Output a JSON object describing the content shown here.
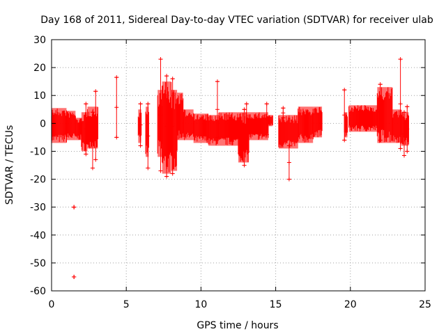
{
  "chart_data": {
    "type": "scatter",
    "title": "Day 168 of 2011, Sidereal Day-to-day VTEC variation (SDTVAR) for receiver ulab",
    "xlabel": "GPS time / hours",
    "ylabel": "SDTVAR / TECUs",
    "xlim": [
      0,
      25
    ],
    "ylim": [
      -60,
      30
    ],
    "xticks": [
      0,
      5,
      10,
      15,
      20,
      25
    ],
    "yticks": [
      -60,
      -50,
      -40,
      -30,
      -20,
      -10,
      0,
      10,
      20,
      30
    ],
    "grid": true,
    "series_color": "#ff0000",
    "segments": [
      {
        "x0": 0.0,
        "x1": 1.0,
        "lo": -7,
        "hi": 5.5
      },
      {
        "x0": 1.0,
        "x1": 1.6,
        "lo": -6,
        "hi": 4.5
      },
      {
        "x0": 1.6,
        "x1": 2.0,
        "lo": -6,
        "hi": 2
      },
      {
        "x0": 2.0,
        "x1": 2.4,
        "lo": -10,
        "hi": 4
      },
      {
        "x0": 2.4,
        "x1": 3.1,
        "lo": -9,
        "hi": 6
      },
      {
        "x0": 5.8,
        "x1": 6.0,
        "lo": -7,
        "hi": 5
      },
      {
        "x0": 6.3,
        "x1": 6.5,
        "lo": -12,
        "hi": 6
      },
      {
        "x0": 7.1,
        "x1": 7.4,
        "lo": -12,
        "hi": 12
      },
      {
        "x0": 7.4,
        "x1": 8.0,
        "lo": -18,
        "hi": 15
      },
      {
        "x0": 8.0,
        "x1": 8.4,
        "lo": -17,
        "hi": 12
      },
      {
        "x0": 8.4,
        "x1": 8.8,
        "lo": -6,
        "hi": 11
      },
      {
        "x0": 8.8,
        "x1": 9.5,
        "lo": -6,
        "hi": 5
      },
      {
        "x0": 9.5,
        "x1": 10.5,
        "lo": -7,
        "hi": 3.5
      },
      {
        "x0": 10.5,
        "x1": 11.2,
        "lo": -8,
        "hi": 3
      },
      {
        "x0": 11.2,
        "x1": 12.5,
        "lo": -8,
        "hi": 4
      },
      {
        "x0": 12.5,
        "x1": 13.2,
        "lo": -14,
        "hi": 4
      },
      {
        "x0": 13.2,
        "x1": 14.5,
        "lo": -6,
        "hi": 4
      },
      {
        "x0": 14.5,
        "x1": 14.8,
        "lo": -1,
        "hi": 3
      },
      {
        "x0": 15.2,
        "x1": 16.5,
        "lo": -9,
        "hi": 3
      },
      {
        "x0": 16.5,
        "x1": 17.5,
        "lo": -7,
        "hi": 6
      },
      {
        "x0": 17.5,
        "x1": 18.1,
        "lo": -5,
        "hi": 6
      },
      {
        "x0": 19.6,
        "x1": 19.8,
        "lo": -5,
        "hi": 4
      },
      {
        "x0": 19.9,
        "x1": 21.8,
        "lo": -3,
        "hi": 6.5
      },
      {
        "x0": 21.8,
        "x1": 22.8,
        "lo": -7,
        "hi": 13
      },
      {
        "x0": 22.8,
        "x1": 23.4,
        "lo": -7,
        "hi": 5
      },
      {
        "x0": 23.4,
        "x1": 23.9,
        "lo": -8,
        "hi": 4
      }
    ],
    "spikes": [
      {
        "x": 1.5,
        "lo": -55,
        "hi": -55
      },
      {
        "x": 1.5,
        "lo": -30,
        "hi": -30
      },
      {
        "x": 2.3,
        "lo": -11,
        "hi": 7
      },
      {
        "x": 2.75,
        "lo": -16,
        "hi": 4
      },
      {
        "x": 2.95,
        "lo": -13,
        "hi": 11.5
      },
      {
        "x": 4.35,
        "lo": -5,
        "hi": 16.5
      },
      {
        "x": 5.95,
        "lo": -8,
        "hi": 7
      },
      {
        "x": 6.45,
        "lo": -16,
        "hi": 7
      },
      {
        "x": 7.3,
        "lo": -17,
        "hi": 23
      },
      {
        "x": 7.7,
        "lo": -19,
        "hi": 17
      },
      {
        "x": 8.1,
        "lo": -18,
        "hi": 16
      },
      {
        "x": 11.1,
        "lo": -5,
        "hi": 15
      },
      {
        "x": 12.9,
        "lo": -15,
        "hi": 5
      },
      {
        "x": 13.05,
        "lo": -8,
        "hi": 7
      },
      {
        "x": 14.4,
        "lo": -4,
        "hi": 7
      },
      {
        "x": 15.5,
        "lo": 2,
        "hi": 5.5
      },
      {
        "x": 15.9,
        "lo": -20,
        "hi": -8
      },
      {
        "x": 19.6,
        "lo": -6,
        "hi": 12
      },
      {
        "x": 22.0,
        "lo": -6,
        "hi": 14
      },
      {
        "x": 23.35,
        "lo": -9,
        "hi": 23
      },
      {
        "x": 23.6,
        "lo": -11.5,
        "hi": 4
      },
      {
        "x": 23.8,
        "lo": -10,
        "hi": 6
      }
    ]
  }
}
